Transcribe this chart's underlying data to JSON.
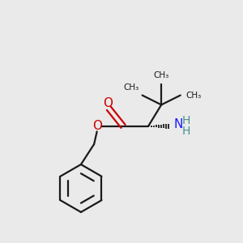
{
  "bg_color": "#eaeaea",
  "bond_color": "#1a1a1a",
  "oxygen_color": "#cc0000",
  "nitrogen_color": "#1a1aff",
  "h_color": "#4a9090",
  "line_width": 1.6,
  "fig_size": [
    3.0,
    3.0
  ],
  "dpi": 100,
  "xlim": [
    0,
    10
  ],
  "ylim": [
    0,
    10
  ]
}
